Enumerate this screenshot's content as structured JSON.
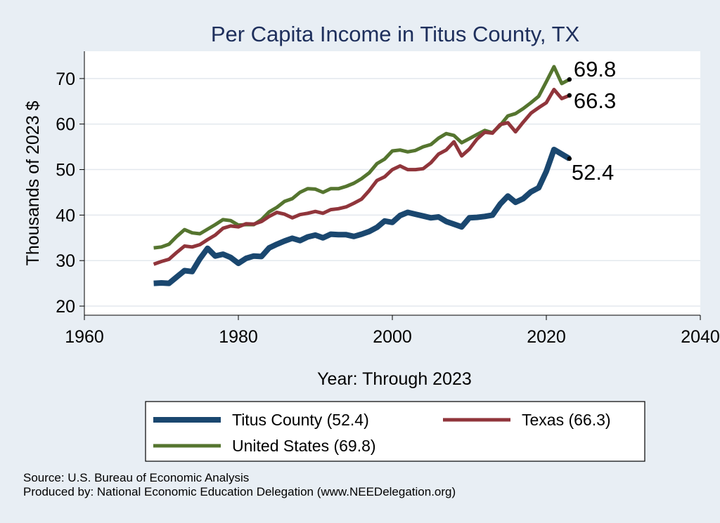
{
  "chart_data": {
    "type": "line",
    "title": "Per Capita Income in Titus County, TX",
    "xlabel": "Year: Through 2023",
    "ylabel": "Thousands of 2023 $",
    "xlim": [
      1960,
      2040
    ],
    "ylim": [
      18,
      76
    ],
    "xticks": [
      1960,
      1980,
      2000,
      2020,
      2040
    ],
    "yticks": [
      20,
      30,
      40,
      50,
      60,
      70
    ],
    "grid": true,
    "legend_position": "bottom",
    "x": [
      1969,
      1970,
      1971,
      1972,
      1973,
      1974,
      1975,
      1976,
      1977,
      1978,
      1979,
      1980,
      1981,
      1982,
      1983,
      1984,
      1985,
      1986,
      1987,
      1988,
      1989,
      1990,
      1991,
      1992,
      1993,
      1994,
      1995,
      1996,
      1997,
      1998,
      1999,
      2000,
      2001,
      2002,
      2003,
      2004,
      2005,
      2006,
      2007,
      2008,
      2009,
      2010,
      2011,
      2012,
      2013,
      2014,
      2015,
      2016,
      2017,
      2018,
      2019,
      2020,
      2021,
      2022,
      2023
    ],
    "series": [
      {
        "name": "Titus County (52.4)",
        "color": "#1a476f",
        "end_label": "52.4",
        "values": [
          25.0,
          25.1,
          25.0,
          26.4,
          27.8,
          27.6,
          30.4,
          32.7,
          31.0,
          31.4,
          30.7,
          29.4,
          30.5,
          31.0,
          30.9,
          32.8,
          33.6,
          34.3,
          34.9,
          34.4,
          35.2,
          35.6,
          35.0,
          35.8,
          35.7,
          35.7,
          35.3,
          35.8,
          36.4,
          37.3,
          38.7,
          38.4,
          39.9,
          40.6,
          40.2,
          39.8,
          39.4,
          39.6,
          38.6,
          38.0,
          37.4,
          39.4,
          39.5,
          39.7,
          40.0,
          42.4,
          44.2,
          42.8,
          43.6,
          45.1,
          46.0,
          49.6,
          54.4,
          53.4,
          52.4
        ]
      },
      {
        "name": "Texas (66.3)",
        "color": "#90353b",
        "end_label": "66.3",
        "values": [
          29.2,
          29.8,
          30.3,
          31.8,
          33.2,
          33.0,
          33.5,
          34.6,
          35.6,
          37.1,
          37.6,
          37.4,
          38.1,
          38.0,
          38.6,
          39.7,
          40.6,
          40.2,
          39.4,
          40.1,
          40.4,
          40.8,
          40.4,
          41.2,
          41.4,
          41.8,
          42.6,
          43.5,
          45.4,
          47.6,
          48.4,
          50.0,
          50.8,
          50.0,
          50.0,
          50.2,
          51.5,
          53.4,
          54.3,
          56.1,
          53.0,
          54.5,
          56.7,
          58.2,
          58.0,
          59.9,
          60.3,
          58.3,
          60.4,
          62.4,
          63.6,
          64.7,
          67.6,
          65.6,
          66.3
        ]
      },
      {
        "name": "United States (69.8)",
        "color": "#55752f",
        "end_label": "69.8",
        "values": [
          32.8,
          33.0,
          33.6,
          35.3,
          36.8,
          36.1,
          35.9,
          36.9,
          37.9,
          39.0,
          38.8,
          37.8,
          37.9,
          37.9,
          39.0,
          40.7,
          41.7,
          43.0,
          43.6,
          45.0,
          45.8,
          45.7,
          45.0,
          45.8,
          45.8,
          46.3,
          47.0,
          48.0,
          49.3,
          51.3,
          52.3,
          54.1,
          54.3,
          53.9,
          54.2,
          55.0,
          55.5,
          56.9,
          57.9,
          57.5,
          55.9,
          56.8,
          57.7,
          58.6,
          58.1,
          59.7,
          61.8,
          62.3,
          63.4,
          64.7,
          66.1,
          69.3,
          72.6,
          68.9,
          69.8
        ]
      }
    ]
  },
  "source_lines": [
    "Source: U.S. Bureau of Economic Analysis",
    "Produced by: National Economic Education Delegation (www.NEEDelegation.org)"
  ]
}
